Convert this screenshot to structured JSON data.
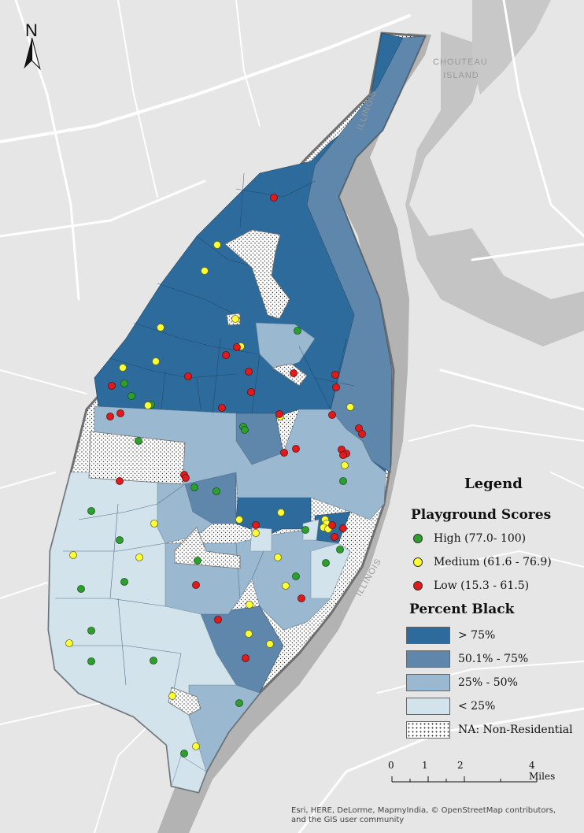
{
  "north_arrow": {
    "label": "N"
  },
  "place_labels": {
    "island_line1": "CHOUTEAU",
    "island_line2": "ISLAND",
    "river_upper": "ILLINOIS",
    "river_lower": "ILLINOIS"
  },
  "legend": {
    "title": "Legend",
    "playground_title": "Playground Scores",
    "playground": [
      {
        "label": "High (77.0- 100)",
        "color": "#2ca02c"
      },
      {
        "label": "Medium (61.6 - 76.9)",
        "color": "#ffff33"
      },
      {
        "label": "Low (15.3 - 61.5)",
        "color": "#e31a1c"
      }
    ],
    "percent_title": "Percent Black",
    "percent": [
      {
        "label": "> 75%",
        "color": "#2c6b9c"
      },
      {
        "label": "50.1% - 75%",
        "color": "#5e87ab"
      },
      {
        "label": "25% - 50%",
        "color": "#9ab8cf"
      },
      {
        "label": "< 25%",
        "color": "#d3e3ec"
      },
      {
        "label": "NA: Non-Residential",
        "color": "stippled"
      }
    ]
  },
  "scale_bar": {
    "ticks": [
      "0",
      "1",
      "2",
      "4 Miles"
    ]
  },
  "attribution": {
    "line1": "Esri, HERE, DeLorme, MapmyIndia, © OpenStreetMap contributors,",
    "line2": "and the GIS user community"
  },
  "colors": {
    "background": "#e6e6e6",
    "river": "#b5b5b5",
    "road": "#ffffff",
    "boundary": "#6f6f6f"
  }
}
